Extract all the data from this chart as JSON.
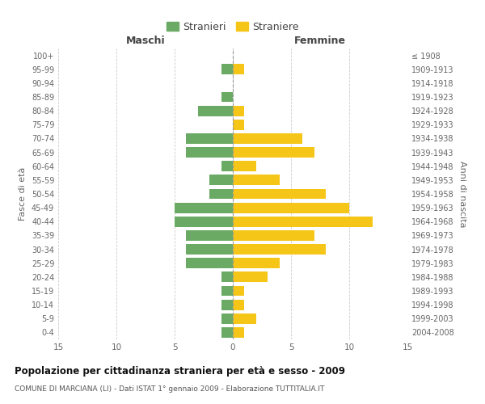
{
  "age_groups": [
    "0-4",
    "5-9",
    "10-14",
    "15-19",
    "20-24",
    "25-29",
    "30-34",
    "35-39",
    "40-44",
    "45-49",
    "50-54",
    "55-59",
    "60-64",
    "65-69",
    "70-74",
    "75-79",
    "80-84",
    "85-89",
    "90-94",
    "95-99",
    "100+"
  ],
  "birth_years": [
    "2004-2008",
    "1999-2003",
    "1994-1998",
    "1989-1993",
    "1984-1988",
    "1979-1983",
    "1974-1978",
    "1969-1973",
    "1964-1968",
    "1959-1963",
    "1954-1958",
    "1949-1953",
    "1944-1948",
    "1939-1943",
    "1934-1938",
    "1929-1933",
    "1924-1928",
    "1919-1923",
    "1914-1918",
    "1909-1913",
    "≤ 1908"
  ],
  "maschi": [
    1,
    1,
    1,
    1,
    1,
    4,
    4,
    4,
    5,
    5,
    2,
    2,
    1,
    4,
    4,
    0,
    3,
    1,
    0,
    1,
    0
  ],
  "femmine": [
    1,
    2,
    1,
    1,
    3,
    4,
    8,
    7,
    12,
    10,
    8,
    4,
    2,
    7,
    6,
    1,
    1,
    0,
    0,
    1,
    0
  ],
  "color_maschi": "#6aaa64",
  "color_femmine": "#f5c518",
  "xlim": 15,
  "title": "Popolazione per cittadinanza straniera per età e sesso - 2009",
  "subtitle": "COMUNE DI MARCIANA (LI) - Dati ISTAT 1° gennaio 2009 - Elaborazione TUTTITALIA.IT",
  "legend_maschi": "Stranieri",
  "legend_femmine": "Straniere",
  "label_maschi": "Maschi",
  "label_femmine": "Femmine",
  "ylabel_left": "Fasce di età",
  "ylabel_right": "Anni di nascita",
  "background_color": "#ffffff",
  "grid_color": "#cccccc"
}
